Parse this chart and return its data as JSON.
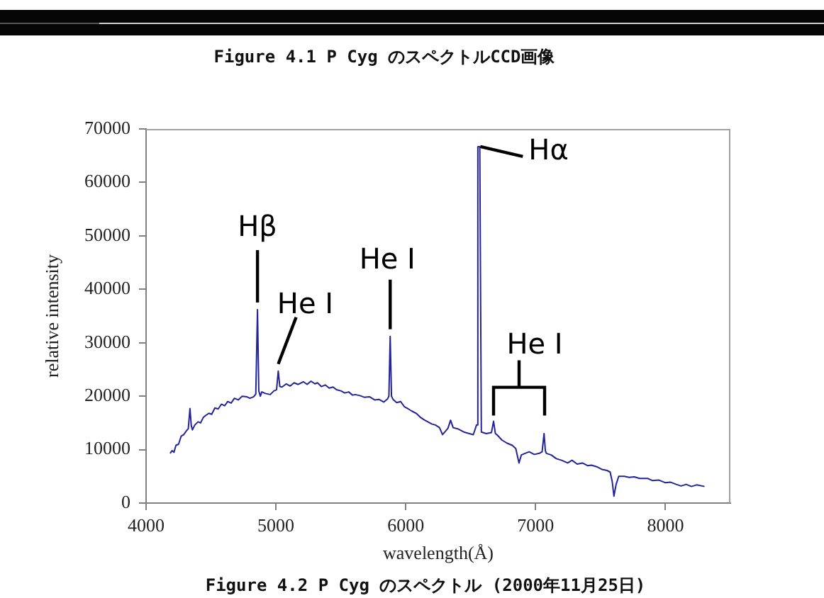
{
  "chart_data": {
    "type": "line",
    "title": "Figure 4.2 P Cyg のスペクトル (2000年11月25日)",
    "xlabel": "wavelength(Å)",
    "ylabel": "relative intensity",
    "color": "#23239a",
    "marker": "none",
    "grid": false,
    "legend": false,
    "xlim": [
      4000,
      8500
    ],
    "xticks": [
      4000,
      5000,
      6000,
      7000,
      8000
    ],
    "ylim": [
      0,
      70000
    ],
    "yticks": [
      0,
      10000,
      20000,
      30000,
      40000,
      50000,
      60000,
      70000
    ],
    "x": [
      4185,
      4200,
      4215,
      4230,
      4250,
      4270,
      4290,
      4310,
      4325,
      4338,
      4348,
      4357,
      4375,
      4400,
      4420,
      4440,
      4460,
      4484,
      4505,
      4530,
      4555,
      4580,
      4605,
      4629,
      4655,
      4680,
      4710,
      4740,
      4774,
      4800,
      4829,
      4845,
      4858,
      4868,
      4880,
      4891,
      4920,
      4956,
      4985,
      5005,
      5018,
      5030,
      5047,
      5080,
      5110,
      5140,
      5170,
      5211,
      5240,
      5270,
      5300,
      5320,
      5350,
      5380,
      5410,
      5440,
      5466,
      5500,
      5530,
      5560,
      5590,
      5611,
      5647,
      5680,
      5720,
      5760,
      5793,
      5830,
      5860,
      5870,
      5880,
      5890,
      5902,
      5930,
      5960,
      5990,
      6020,
      6047,
      6080,
      6110,
      6140,
      6170,
      6200,
      6229,
      6260,
      6283,
      6301,
      6325,
      6345,
      6365,
      6400,
      6447,
      6490,
      6520,
      6545,
      6555,
      6570,
      6582,
      6620,
      6660,
      6676,
      6690,
      6702,
      6740,
      6780,
      6820,
      6847,
      6872,
      6890,
      6919,
      6950,
      6990,
      7028,
      7050,
      7065,
      7075,
      7083,
      7120,
      7160,
      7200,
      7247,
      7280,
      7320,
      7360,
      7400,
      7429,
      7470,
      7510,
      7550,
      7574,
      7590,
      7603,
      7620,
      7640,
      7683,
      7720,
      7760,
      7800,
      7865,
      7900,
      7950,
      8000,
      8040,
      8083,
      8120,
      8160,
      8200,
      8240,
      8301
    ],
    "values": [
      9300,
      9800,
      9500,
      10800,
      11000,
      12500,
      12800,
      13500,
      13900,
      17700,
      14500,
      13700,
      14600,
      15200,
      15000,
      16000,
      16400,
      16800,
      16600,
      17800,
      17600,
      18500,
      18200,
      19000,
      18700,
      19600,
      19300,
      20000,
      19900,
      19600,
      19900,
      20400,
      36200,
      21000,
      20000,
      20800,
      20500,
      20300,
      21000,
      21200,
      24700,
      21800,
      21700,
      22300,
      21900,
      22500,
      22200,
      22700,
      22200,
      22800,
      22300,
      22500,
      21800,
      22100,
      21500,
      21700,
      21200,
      21000,
      20600,
      20800,
      20200,
      20300,
      20100,
      19800,
      19900,
      19300,
      19400,
      18900,
      19500,
      20000,
      31200,
      20000,
      19400,
      18800,
      19000,
      18000,
      17600,
      17200,
      16800,
      16100,
      15600,
      15200,
      14800,
      14600,
      14100,
      12800,
      13300,
      14000,
      15500,
      14100,
      13900,
      13300,
      13000,
      12800,
      14600,
      66700,
      66700,
      13300,
      13000,
      13200,
      15300,
      13000,
      12800,
      11800,
      11200,
      10800,
      10200,
      7500,
      9000,
      9300,
      9600,
      9100,
      9300,
      9600,
      13000,
      9800,
      9300,
      9000,
      8300,
      8000,
      7500,
      8000,
      7300,
      7500,
      7000,
      7100,
      6800,
      6300,
      6100,
      5800,
      4000,
      1300,
      3500,
      5000,
      5000,
      4800,
      4900,
      4600,
      4600,
      4200,
      4300,
      3800,
      3900,
      3500,
      3200,
      3500,
      3100,
      3400,
      3100
    ],
    "annotations": [
      {
        "text": "Hα",
        "x": 6563,
        "y": 66700
      },
      {
        "text": "Hβ",
        "x": 4858,
        "y": 36200
      },
      {
        "text": "He I",
        "x": 5018,
        "y": 24700
      },
      {
        "text": "He I",
        "x": 5880,
        "y": 31200
      },
      {
        "text": "He I",
        "x": 6676,
        "y": 15300
      },
      "Figure 4.1 P Cyg のスペクトルCCD画像"
    ]
  }
}
